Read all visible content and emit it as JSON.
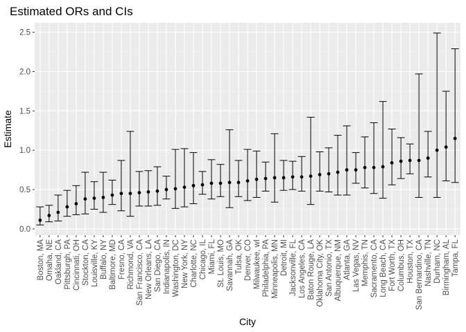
{
  "chart_data": {
    "type": "scatter",
    "title": "Estimated ORs and CIs",
    "xlabel": "City",
    "ylabel": "Estimate",
    "ylim": [
      -0.08,
      2.62
    ],
    "yticks": [
      0.0,
      0.5,
      1.0,
      1.5,
      2.0,
      2.5
    ],
    "ytick_labels": [
      "0.0",
      "0.5",
      "1.0",
      "1.5",
      "2.0",
      "2.5"
    ],
    "grid": true,
    "error_bars": true,
    "points": [
      {
        "city": "Boston, MA",
        "estimate": 0.11,
        "lower": 0.05,
        "upper": 0.28
      },
      {
        "city": "Omaha, NE",
        "estimate": 0.17,
        "lower": 0.09,
        "upper": 0.3
      },
      {
        "city": "Oakland, CA",
        "estimate": 0.21,
        "lower": 0.1,
        "upper": 0.43
      },
      {
        "city": "Pittsburgh, PA",
        "estimate": 0.28,
        "lower": 0.16,
        "upper": 0.49
      },
      {
        "city": "Cincinnati, OH",
        "estimate": 0.32,
        "lower": 0.18,
        "upper": 0.55
      },
      {
        "city": "Stockton, CA",
        "estimate": 0.38,
        "lower": 0.19,
        "upper": 0.72
      },
      {
        "city": "Louisville, KY",
        "estimate": 0.39,
        "lower": 0.25,
        "upper": 0.6
      },
      {
        "city": "Buffalo, NY",
        "estimate": 0.4,
        "lower": 0.21,
        "upper": 0.72
      },
      {
        "city": "Baltimore, MD",
        "estimate": 0.43,
        "lower": 0.31,
        "upper": 0.62
      },
      {
        "city": "Fresno, CA",
        "estimate": 0.45,
        "lower": 0.23,
        "upper": 0.87
      },
      {
        "city": "Richmond, VA",
        "estimate": 0.45,
        "lower": 0.16,
        "upper": 1.24
      },
      {
        "city": "San Francisco, CA",
        "estimate": 0.46,
        "lower": 0.29,
        "upper": 0.73
      },
      {
        "city": "New Orleans, LA",
        "estimate": 0.47,
        "lower": 0.29,
        "upper": 0.74
      },
      {
        "city": "San Diego, CA",
        "estimate": 0.48,
        "lower": 0.3,
        "upper": 0.79
      },
      {
        "city": "Indianapolis, IN",
        "estimate": 0.5,
        "lower": 0.38,
        "upper": 0.67
      },
      {
        "city": "Washington, DC",
        "estimate": 0.51,
        "lower": 0.26,
        "upper": 1.01
      },
      {
        "city": "New York, NY",
        "estimate": 0.53,
        "lower": 0.28,
        "upper": 1.02
      },
      {
        "city": "Charlotte, NC",
        "estimate": 0.55,
        "lower": 0.32,
        "upper": 0.97
      },
      {
        "city": "Chicago, IL",
        "estimate": 0.56,
        "lower": 0.44,
        "upper": 0.73
      },
      {
        "city": "Miami, FL",
        "estimate": 0.58,
        "lower": 0.38,
        "upper": 0.88
      },
      {
        "city": "St. Louis, MO",
        "estimate": 0.58,
        "lower": 0.41,
        "upper": 0.82
      },
      {
        "city": "Savannah, GA",
        "estimate": 0.59,
        "lower": 0.27,
        "upper": 1.26
      },
      {
        "city": "Tulsa, OK",
        "estimate": 0.59,
        "lower": 0.41,
        "upper": 0.87
      },
      {
        "city": "Denver, CO",
        "estimate": 0.61,
        "lower": 0.36,
        "upper": 1.01
      },
      {
        "city": "Milwaukee, wI",
        "estimate": 0.63,
        "lower": 0.4,
        "upper": 0.99
      },
      {
        "city": "Philadelphia, PA",
        "estimate": 0.64,
        "lower": 0.48,
        "upper": 0.85
      },
      {
        "city": "Minneapolis, MN",
        "estimate": 0.65,
        "lower": 0.34,
        "upper": 1.21
      },
      {
        "city": "Detroit, MI",
        "estimate": 0.65,
        "lower": 0.49,
        "upper": 0.87
      },
      {
        "city": "Jacksonville, FL",
        "estimate": 0.66,
        "lower": 0.5,
        "upper": 0.86
      },
      {
        "city": "Los Angeles, CA",
        "estimate": 0.66,
        "lower": 0.48,
        "upper": 0.92
      },
      {
        "city": "Baton Rouge, LA",
        "estimate": 0.67,
        "lower": 0.31,
        "upper": 1.42
      },
      {
        "city": "Oklahoma City, OK",
        "estimate": 0.69,
        "lower": 0.48,
        "upper": 0.98
      },
      {
        "city": "San Antonio, TX",
        "estimate": 0.7,
        "lower": 0.47,
        "upper": 1.03
      },
      {
        "city": "Albuquerque, NM",
        "estimate": 0.72,
        "lower": 0.43,
        "upper": 1.19
      },
      {
        "city": "Atlanta, GA",
        "estimate": 0.75,
        "lower": 0.43,
        "upper": 1.31
      },
      {
        "city": "Las Vegas, NV",
        "estimate": 0.75,
        "lower": 0.58,
        "upper": 0.97
      },
      {
        "city": "Memphis, TN",
        "estimate": 0.78,
        "lower": 0.52,
        "upper": 1.17
      },
      {
        "city": "Sacramento, CA",
        "estimate": 0.78,
        "lower": 0.45,
        "upper": 1.35
      },
      {
        "city": "Long Beach, CA",
        "estimate": 0.79,
        "lower": 0.39,
        "upper": 1.62
      },
      {
        "city": "Fort Worth, TX",
        "estimate": 0.84,
        "lower": 0.56,
        "upper": 1.27
      },
      {
        "city": "Columbus, OH",
        "estimate": 0.86,
        "lower": 0.64,
        "upper": 1.16
      },
      {
        "city": "Houston, TX",
        "estimate": 0.87,
        "lower": 0.7,
        "upper": 1.08
      },
      {
        "city": "San Bernardino, CA",
        "estimate": 0.87,
        "lower": 0.4,
        "upper": 1.97
      },
      {
        "city": "Nashville, TN",
        "estimate": 0.9,
        "lower": 0.66,
        "upper": 1.24
      },
      {
        "city": "Durham, NC",
        "estimate": 1.0,
        "lower": 0.4,
        "upper": 2.49
      },
      {
        "city": "Birmingham, AL",
        "estimate": 1.04,
        "lower": 0.61,
        "upper": 1.75
      },
      {
        "city": "Tampa, FL",
        "estimate": 1.15,
        "lower": 0.59,
        "upper": 2.29
      }
    ],
    "colors": {
      "panel_background": "#ebebeb",
      "grid_major": "#ffffff",
      "grid_minor": "#f5f5f5",
      "point": "#000000",
      "errorbar": "#000000",
      "tick_text": "#4d4d4d"
    }
  }
}
